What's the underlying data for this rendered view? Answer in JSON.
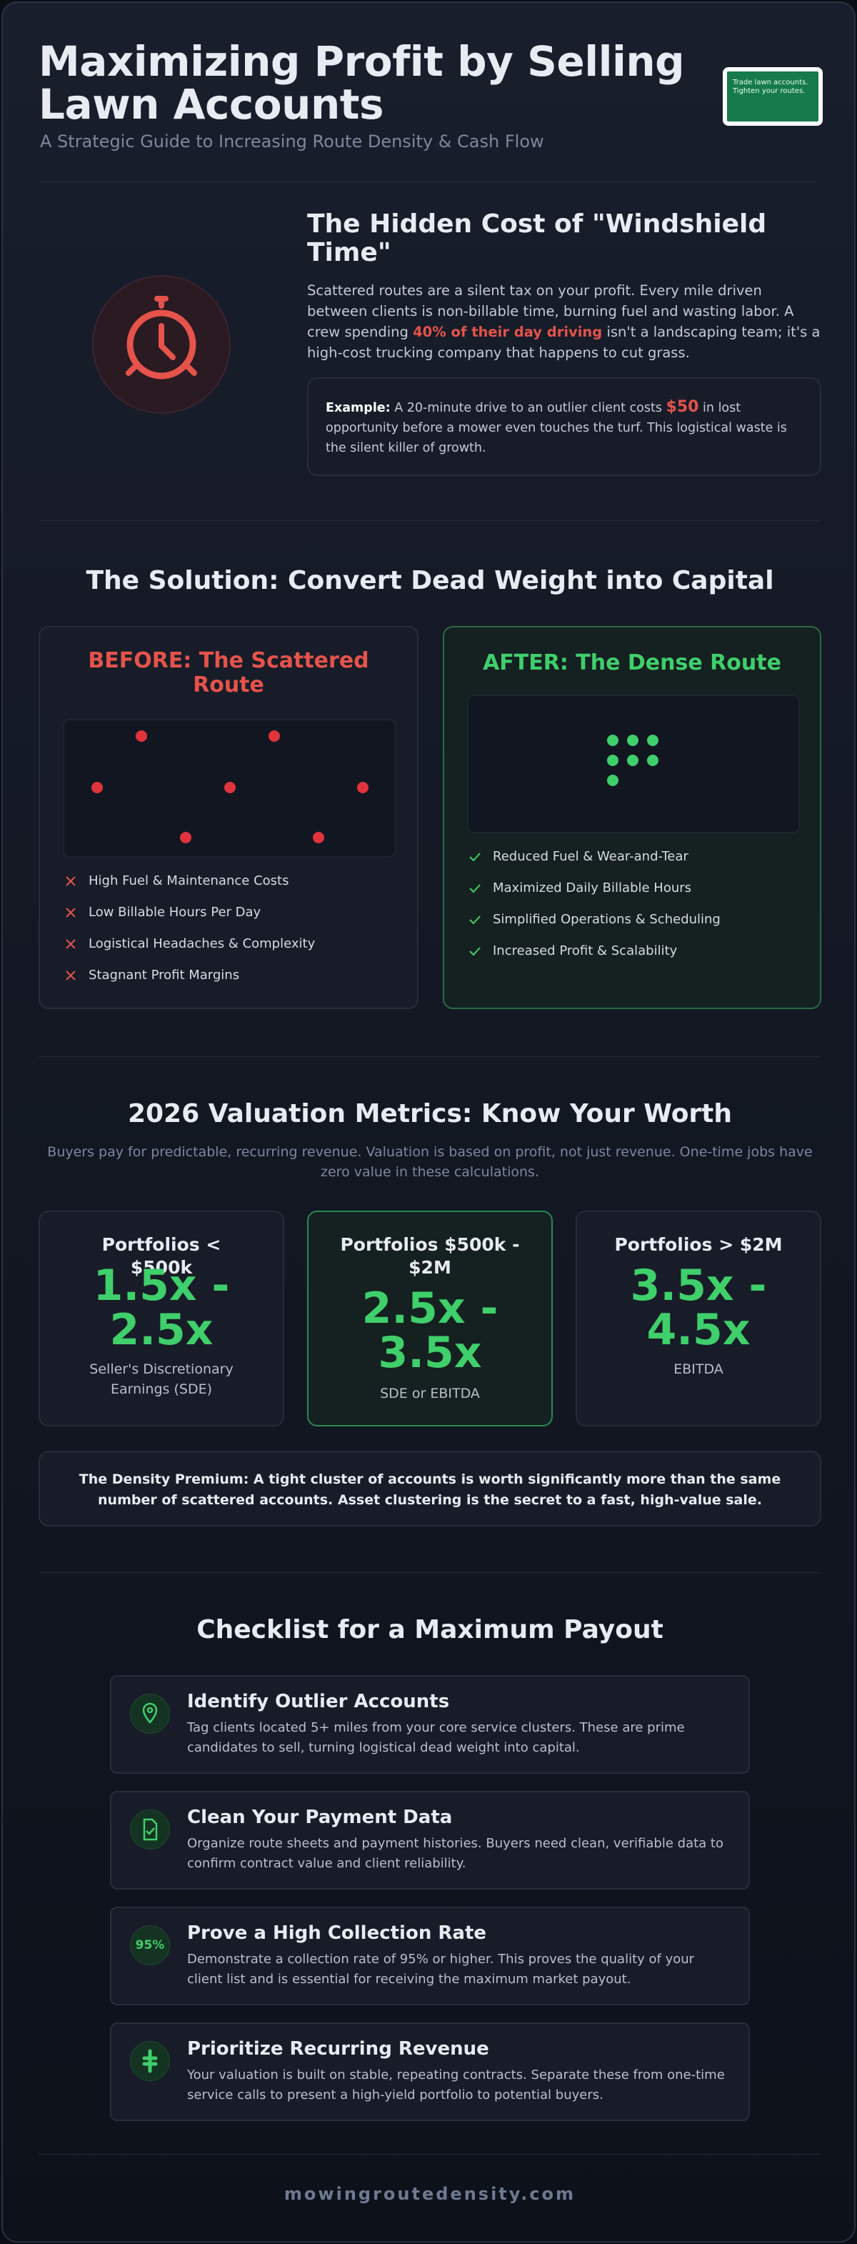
{
  "header": {
    "title_lines": [
      "Maximizing Profit by Selling",
      "Lawn Accounts"
    ],
    "subtitle": "A Strategic Guide to Increasing Route Density & Cash Flow",
    "thumbnail_text": "Trade lawn accounts. Tighten your routes."
  },
  "hidden_cost": {
    "title": "The Hidden Cost of \"Windshield Time\"",
    "body_before": "Scattered routes are a silent tax on your profit. Every mile driven between clients is non-billable time, burning fuel and wasting labor. A crew spending ",
    "body_highlight": "40% of their day driving",
    "body_after": " isn't a landscaping team; it's a high-cost trucking company that happens to cut grass.",
    "example_label": "Example:",
    "example_before": " A 20-minute drive to an outlier client costs ",
    "example_highlight": "$50",
    "example_after": " in lost opportunity before a mower even touches the turf. This logistical waste is the silent killer of growth."
  },
  "solution": {
    "title": "The Solution: Convert Dead Weight into Capital",
    "before": {
      "title": "BEFORE: The Scattered Route",
      "items": [
        "High Fuel & Maintenance Costs",
        "Low Billable Hours Per Day",
        "Logistical Headaches & Complexity",
        "Stagnant Profit Margins"
      ]
    },
    "after": {
      "title": "AFTER: The Dense Route",
      "items": [
        "Reduced Fuel & Wear-and-Tear",
        "Maximized Daily Billable Hours",
        "Simplified Operations & Scheduling",
        "Increased Profit & Scalability"
      ]
    }
  },
  "valuation": {
    "title": "2026 Valuation Metrics: Know Your Worth",
    "subtitle": "Buyers pay for predictable, recurring revenue. Valuation is based on profit, not just revenue. One-time jobs have zero value in these calculations.",
    "cards": [
      {
        "label": "Portfolios < $500k",
        "multiple": "1.5x - 2.5x",
        "basis": "Seller's Discretionary Earnings (SDE)"
      },
      {
        "label": "Portfolios $500k - $2M",
        "multiple": "2.5x - 3.5x",
        "basis": "SDE or EBITDA"
      },
      {
        "label": "Portfolios > $2M",
        "multiple": "3.5x - 4.5x",
        "basis": "EBITDA"
      }
    ],
    "premium": "The Density Premium: A tight cluster of accounts is worth significantly more than the same number of scattered accounts. Asset clustering is the secret to a fast, high-value sale."
  },
  "checklist": {
    "title": "Checklist for a Maximum Payout",
    "badge": "95%",
    "items": [
      {
        "title": "Identify Outlier Accounts",
        "text": "Tag clients located 5+ miles from your core service clusters. These are prime candidates to sell, turning logistical dead weight into capital."
      },
      {
        "title": "Clean Your Payment Data",
        "text": "Organize route sheets and payment histories. Buyers need clean, verifiable data to confirm contract value and client reliability."
      },
      {
        "title": "Prove a High Collection Rate",
        "text": "Demonstrate a collection rate of 95% or higher. This proves the quality of your client list and is essential for receiving the maximum market payout."
      },
      {
        "title": "Prioritize Recurring Revenue",
        "text": "Your valuation is built on stable, repeating contracts. Separate these from one-time service calls to present a high-yield portfolio to potential buyers."
      }
    ]
  },
  "footer": {
    "site": "mowingroutedensity.com"
  }
}
